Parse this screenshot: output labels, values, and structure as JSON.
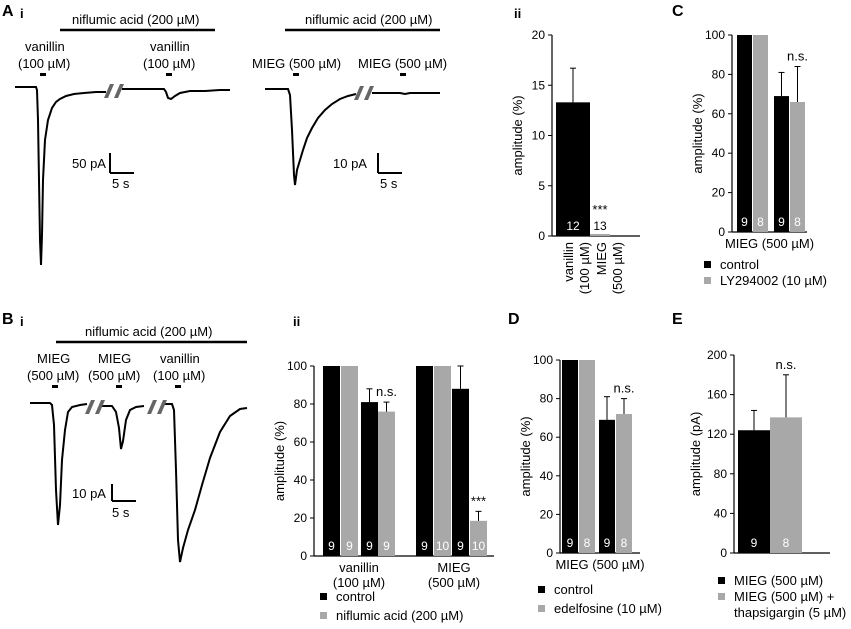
{
  "colors": {
    "control": "#000000",
    "treatment": "#a8a8a8",
    "n_label": "#ffffff"
  },
  "panel_labels": {
    "A": "A",
    "B": "B",
    "C": "C",
    "D": "D",
    "E": "E",
    "i": "i",
    "ii": "ii"
  },
  "trace_A1": {
    "treatment_bar_label": "niflumic acid (200 µM)",
    "left_stim": "vanillin",
    "left_stim_conc": "(100 µM)",
    "right_stim": "vanillin",
    "right_stim_conc": "(100 µM)",
    "scale_current": "50 pA",
    "scale_time": "5 s"
  },
  "trace_A2": {
    "treatment_bar_label": "niflumic acid (200 µM)",
    "left_stim": "MIEG (500 µM)",
    "right_stim": "MIEG (500 µM)",
    "scale_current": "10 pA",
    "scale_time": "5 s"
  },
  "trace_B1": {
    "treatment_bar_label": "niflumic acid (200 µM)",
    "stim1": "MIEG",
    "stim1_conc": "(500 µM)",
    "stim2": "MIEG",
    "stim2_conc": "(500 µM)",
    "stim3": "vanillin",
    "stim3_conc": "(100 µM)",
    "scale_current": "10 pA",
    "scale_time": "5 s"
  },
  "chart_data": [
    {
      "id": "A_ii",
      "type": "bar",
      "ylabel": "amplitude (%)",
      "ylim": [
        0,
        20
      ],
      "yticks": [
        "0",
        "5",
        "10",
        "15",
        "20"
      ],
      "categories": [
        {
          "line1": "vanillin",
          "line2": "(100 µM)"
        },
        {
          "line1": "MIEG",
          "line2": "(500 µM)"
        }
      ],
      "values": [
        13.3,
        0.2
      ],
      "errors": [
        3.4,
        0
      ],
      "n": [
        "12",
        "13"
      ],
      "significance": [
        {
          "index": 1,
          "label": "***"
        }
      ]
    },
    {
      "id": "B_ii",
      "type": "bar",
      "ylabel": "amplitude (%)",
      "ylim": [
        0,
        100
      ],
      "yticks": [
        "0",
        "20",
        "40",
        "60",
        "80",
        "100"
      ],
      "groups": [
        {
          "line1": "vanillin",
          "line2": "(100 µM)"
        },
        {
          "line1": "MIEG",
          "line2": "(500 µM)"
        }
      ],
      "series": [
        {
          "name": "control",
          "values": [
            100,
            100,
            100,
            100
          ],
          "errors": [
            0,
            0,
            0,
            0
          ]
        },
        {
          "name": "niflumic acid (200 µM)",
          "values": [
            81,
            76,
            88,
            18.5
          ],
          "errors": [
            7,
            5,
            12,
            5
          ]
        }
      ],
      "bar_order": [
        "control",
        "niflumic acid (200 µM)",
        "control",
        "niflumic acid (200 µM)",
        "control",
        "niflumic acid (200 µM)",
        "control",
        "niflumic acid (200 µM)"
      ],
      "bar_values": [
        100,
        100,
        81,
        76,
        100,
        100,
        88,
        18.5
      ],
      "bar_errors": [
        0,
        0,
        7,
        5,
        0,
        0,
        12,
        5
      ],
      "n": [
        "9",
        "9",
        "9",
        "9",
        "9",
        "10",
        "9",
        "10"
      ],
      "significance": [
        {
          "bar": 3,
          "label": "n.s."
        },
        {
          "bar": 7,
          "label": "***"
        }
      ],
      "legend": [
        "control",
        "niflumic acid (200 µM)"
      ]
    },
    {
      "id": "C",
      "type": "bar",
      "ylabel": "amplitude (%)",
      "xlabel": "MIEG (500 µM)",
      "ylim": [
        0,
        100
      ],
      "yticks": [
        "0",
        "20",
        "40",
        "60",
        "80",
        "100"
      ],
      "series": [
        {
          "name": "control",
          "values": [
            100,
            69
          ],
          "errors": [
            0,
            12
          ]
        },
        {
          "name": "LY294002 (10 µM)",
          "values": [
            100,
            66
          ],
          "errors": [
            0,
            18
          ]
        }
      ],
      "bar_values": [
        100,
        100,
        69,
        66
      ],
      "bar_errors": [
        0,
        0,
        12,
        18
      ],
      "n": [
        "9",
        "8",
        "9",
        "8"
      ],
      "significance": [
        {
          "bar": 3,
          "label": "n.s."
        }
      ],
      "legend": [
        "control",
        "LY294002 (10 µM)"
      ]
    },
    {
      "id": "D",
      "type": "bar",
      "ylabel": "amplitude (%)",
      "xlabel": "MIEG (500 µM)",
      "ylim": [
        0,
        100
      ],
      "yticks": [
        "0",
        "20",
        "40",
        "60",
        "80",
        "100"
      ],
      "series": [
        {
          "name": "control",
          "values": [
            100,
            69
          ],
          "errors": [
            0,
            12
          ]
        },
        {
          "name": "edelfosine (10 µM)",
          "values": [
            100,
            72
          ],
          "errors": [
            0,
            8
          ]
        }
      ],
      "bar_values": [
        100,
        100,
        69,
        72
      ],
      "bar_errors": [
        0,
        0,
        12,
        8
      ],
      "n": [
        "9",
        "8",
        "9",
        "8"
      ],
      "significance": [
        {
          "bar": 3,
          "label": "n.s."
        }
      ],
      "legend": [
        "control",
        "edelfosine (10 µM)"
      ]
    },
    {
      "id": "E",
      "type": "bar",
      "ylabel": "amplitude (pA)",
      "ylim": [
        0,
        200
      ],
      "yticks": [
        "0",
        "40",
        "80",
        "120",
        "160",
        "200"
      ],
      "series": [
        {
          "name": "MIEG (500 µM)",
          "values": [
            124
          ],
          "errors": [
            20
          ]
        },
        {
          "name": "MIEG (500 µM) + thapsigargin (5 µM)",
          "values": [
            137
          ],
          "errors": [
            43
          ]
        }
      ],
      "bar_values": [
        124,
        137
      ],
      "bar_errors": [
        20,
        43
      ],
      "n": [
        "9",
        "8"
      ],
      "significance": [
        {
          "bar": 1,
          "label": "n.s."
        }
      ],
      "legend_lines": [
        "MIEG (500 µM)",
        "MIEG (500 µM) +",
        "thapsigargin (5 µM)"
      ]
    }
  ]
}
